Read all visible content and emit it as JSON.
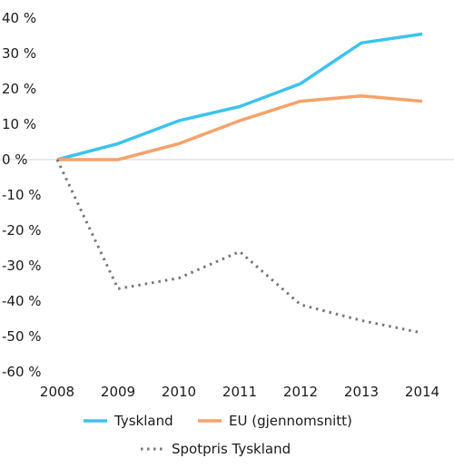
{
  "chart_data": {
    "type": "line",
    "x": [
      "2008",
      "2009",
      "2010",
      "2011",
      "2012",
      "2013",
      "2014"
    ],
    "series": [
      {
        "name": "Tyskland",
        "values": [
          0,
          4.5,
          11,
          15,
          21.5,
          33,
          35.5
        ],
        "color": "#3cc3ee",
        "style": "solid"
      },
      {
        "name": "EU (gjennomsnitt)",
        "values": [
          0,
          0,
          4.5,
          11,
          16.5,
          18,
          16.5
        ],
        "color": "#f5a26a",
        "style": "solid"
      },
      {
        "name": "Spotpris Tyskland",
        "values": [
          0,
          -36.5,
          -33.5,
          -26,
          -41,
          -45.5,
          -49
        ],
        "color": "#777777",
        "style": "dotted"
      }
    ],
    "y_ticks": [
      "40 %",
      "30 %",
      "20 %",
      "10 %",
      "0 %",
      "-10 %",
      "-20 %",
      "-30 %",
      "-40 %",
      "-50 %",
      "-60 %"
    ],
    "y_tick_values": [
      40,
      30,
      20,
      10,
      0,
      -10,
      -20,
      -30,
      -40,
      -50,
      -60
    ],
    "ylim": [
      -60,
      40
    ],
    "title": "",
    "xlabel": "",
    "ylabel": "",
    "grid": false,
    "zero_line": true,
    "legend_position": "bottom"
  }
}
